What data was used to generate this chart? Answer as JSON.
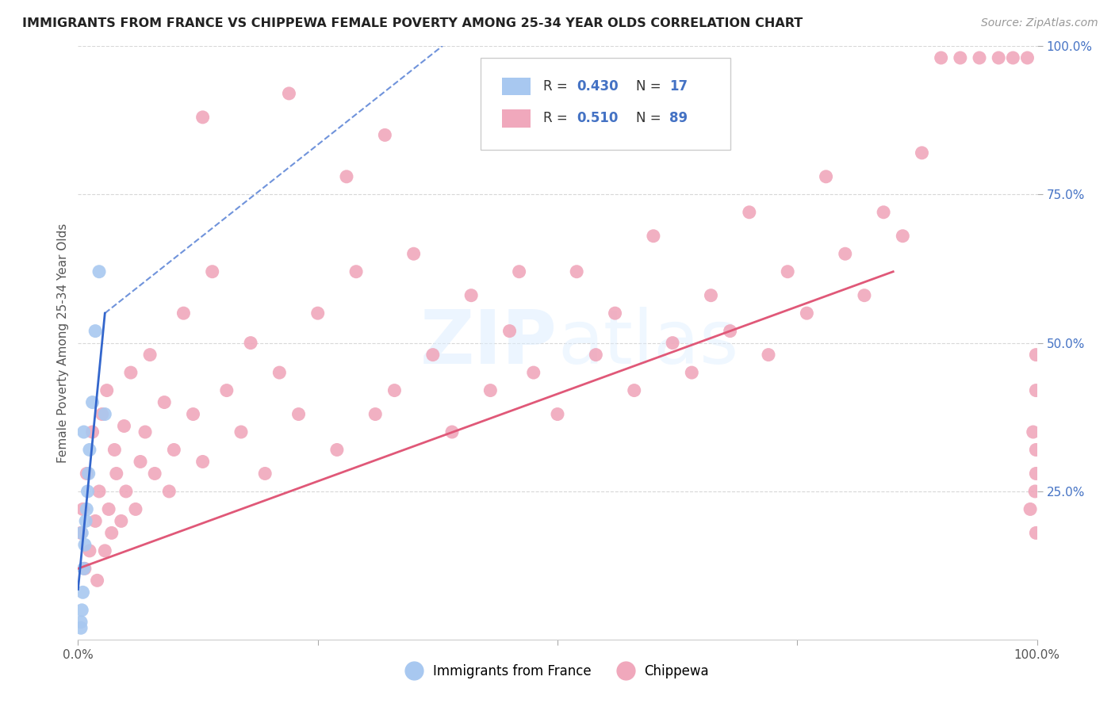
{
  "title": "IMMIGRANTS FROM FRANCE VS CHIPPEWA FEMALE POVERTY AMONG 25-34 YEAR OLDS CORRELATION CHART",
  "source": "Source: ZipAtlas.com",
  "ylabel": "Female Poverty Among 25-34 Year Olds",
  "xlim": [
    0,
    1.0
  ],
  "ylim": [
    0,
    1.0
  ],
  "legend_r_blue": "0.430",
  "legend_n_blue": "17",
  "legend_r_pink": "0.510",
  "legend_n_pink": "89",
  "legend_label_blue": "Immigrants from France",
  "legend_label_pink": "Chippewa",
  "blue_color": "#a8c8f0",
  "pink_color": "#f0a8bc",
  "blue_line_color": "#3366cc",
  "pink_line_color": "#e05878",
  "r_n_color": "#4472c4",
  "grid_color": "#d8d8d8",
  "right_tick_color": "#4472c4",
  "blue_x": [
    0.003,
    0.004,
    0.005,
    0.006,
    0.007,
    0.008,
    0.009,
    0.01,
    0.011,
    0.012,
    0.015,
    0.018,
    0.022,
    0.028,
    0.004,
    0.006,
    0.003
  ],
  "blue_y": [
    0.03,
    0.05,
    0.08,
    0.12,
    0.16,
    0.2,
    0.22,
    0.25,
    0.28,
    0.32,
    0.4,
    0.52,
    0.62,
    0.38,
    0.18,
    0.35,
    0.02
  ],
  "pink_x": [
    0.003,
    0.005,
    0.007,
    0.009,
    0.012,
    0.015,
    0.018,
    0.02,
    0.022,
    0.025,
    0.028,
    0.03,
    0.032,
    0.035,
    0.038,
    0.04,
    0.045,
    0.048,
    0.05,
    0.055,
    0.06,
    0.065,
    0.07,
    0.075,
    0.08,
    0.09,
    0.095,
    0.1,
    0.11,
    0.12,
    0.13,
    0.14,
    0.155,
    0.17,
    0.18,
    0.195,
    0.21,
    0.23,
    0.25,
    0.27,
    0.29,
    0.31,
    0.33,
    0.35,
    0.37,
    0.39,
    0.41,
    0.43,
    0.45,
    0.475,
    0.5,
    0.52,
    0.54,
    0.56,
    0.58,
    0.6,
    0.62,
    0.64,
    0.66,
    0.68,
    0.7,
    0.72,
    0.74,
    0.76,
    0.78,
    0.8,
    0.82,
    0.84,
    0.86,
    0.88,
    0.9,
    0.92,
    0.94,
    0.96,
    0.975,
    0.99,
    0.993,
    0.996,
    0.998,
    0.999,
    0.999,
    0.999,
    0.999,
    0.999,
    0.13,
    0.22,
    0.28,
    0.32,
    0.46
  ],
  "pink_y": [
    0.18,
    0.22,
    0.12,
    0.28,
    0.15,
    0.35,
    0.2,
    0.1,
    0.25,
    0.38,
    0.15,
    0.42,
    0.22,
    0.18,
    0.32,
    0.28,
    0.2,
    0.36,
    0.25,
    0.45,
    0.22,
    0.3,
    0.35,
    0.48,
    0.28,
    0.4,
    0.25,
    0.32,
    0.55,
    0.38,
    0.3,
    0.62,
    0.42,
    0.35,
    0.5,
    0.28,
    0.45,
    0.38,
    0.55,
    0.32,
    0.62,
    0.38,
    0.42,
    0.65,
    0.48,
    0.35,
    0.58,
    0.42,
    0.52,
    0.45,
    0.38,
    0.62,
    0.48,
    0.55,
    0.42,
    0.68,
    0.5,
    0.45,
    0.58,
    0.52,
    0.72,
    0.48,
    0.62,
    0.55,
    0.78,
    0.65,
    0.58,
    0.72,
    0.68,
    0.82,
    0.98,
    0.98,
    0.98,
    0.98,
    0.98,
    0.98,
    0.22,
    0.35,
    0.25,
    0.48,
    0.18,
    0.42,
    0.32,
    0.28,
    0.88,
    0.92,
    0.78,
    0.85,
    0.62
  ],
  "blue_line_solid": [
    [
      0.0,
      0.05
    ],
    [
      0.085,
      0.55
    ]
  ],
  "blue_line_dashed": [
    [
      0.05,
      0.35
    ],
    [
      0.55,
      1.0
    ]
  ],
  "pink_line": [
    [
      0.0,
      0.85
    ],
    [
      0.12,
      0.62
    ]
  ]
}
